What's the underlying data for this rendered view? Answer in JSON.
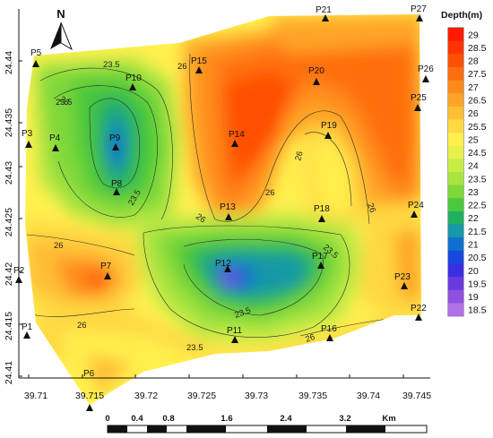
{
  "legend": {
    "title": "Depth(m)",
    "levels": [
      "29",
      "28.5",
      "28",
      "27.5",
      "27",
      "26.5",
      "26",
      "25.5",
      "25",
      "24.5",
      "24",
      "23.5",
      "23",
      "22.5",
      "22",
      "21.5",
      "21",
      "20.5",
      "20",
      "19.5",
      "19",
      "18.5"
    ],
    "colors": [
      "#ff1a00",
      "#ff3300",
      "#ff5000",
      "#ff6e0e",
      "#ff8a1c",
      "#ffa428",
      "#ffbe34",
      "#ffd842",
      "#fff04e",
      "#e8f04a",
      "#c8ec46",
      "#a8e440",
      "#7ed83a",
      "#4cc83a",
      "#20b060",
      "#1898a8",
      "#1070d0",
      "#1848e0",
      "#3a2ee0",
      "#6a3ae0",
      "#9050e0",
      "#b070e8"
    ]
  },
  "north_arrow": {
    "label": "N"
  },
  "axes": {
    "x_ticks": [
      "39.71",
      "39.715",
      "39.72",
      "39.725",
      "39.73",
      "39.735",
      "39.74",
      "39.745"
    ],
    "y_ticks": [
      "24.44",
      "24.435",
      "24.43",
      "24.425",
      "24.42",
      "24.415",
      "24.41"
    ]
  },
  "stations": [
    {
      "id": "P1"
    },
    {
      "id": "P2"
    },
    {
      "id": "P3"
    },
    {
      "id": "P4"
    },
    {
      "id": "P5"
    },
    {
      "id": "P6"
    },
    {
      "id": "P7"
    },
    {
      "id": "P8"
    },
    {
      "id": "P9"
    },
    {
      "id": "P10"
    },
    {
      "id": "P11"
    },
    {
      "id": "P12"
    },
    {
      "id": "P13"
    },
    {
      "id": "P14"
    },
    {
      "id": "P15"
    },
    {
      "id": "P16"
    },
    {
      "id": "P17"
    },
    {
      "id": "P18"
    },
    {
      "id": "P19"
    },
    {
      "id": "P20"
    },
    {
      "id": "P21"
    },
    {
      "id": "P22"
    },
    {
      "id": "P23"
    },
    {
      "id": "P24"
    },
    {
      "id": "P25"
    },
    {
      "id": "P26"
    },
    {
      "id": "P27"
    }
  ],
  "contour_labels": [
    "23.5",
    "26",
    "26",
    "23.5",
    "23.5",
    "26",
    "26",
    "26",
    "23.5",
    "26",
    "26",
    "23.5",
    "23.5",
    "26",
    "26"
  ],
  "scale_bar": {
    "labels": [
      "0",
      "0.4",
      "0.8",
      "1.6",
      "2.4",
      "3.2"
    ],
    "unit": "Km"
  }
}
